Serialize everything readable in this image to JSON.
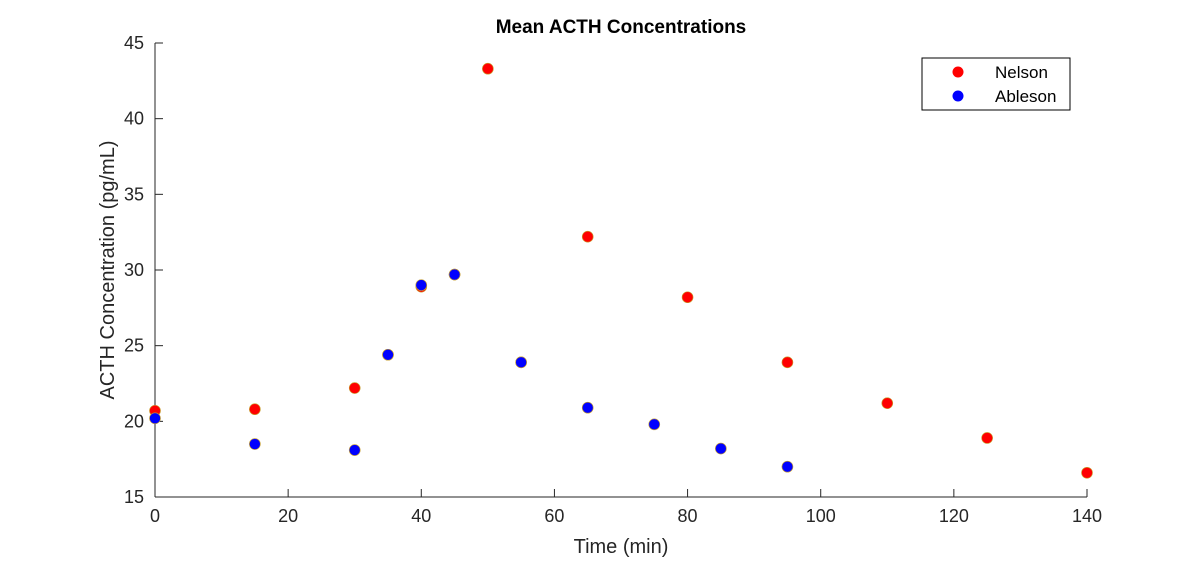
{
  "chart_data": {
    "type": "scatter",
    "title": "Mean ACTH Concentrations",
    "xlabel": "Time (min)",
    "ylabel": "ACTH Concentration (pg/mL)",
    "xlim": [
      0,
      140
    ],
    "ylim": [
      15,
      45
    ],
    "xticks": [
      "0",
      "20",
      "40",
      "60",
      "80",
      "100",
      "120",
      "140"
    ],
    "yticks": [
      "15",
      "20",
      "25",
      "30",
      "35",
      "40",
      "45"
    ],
    "grid": false,
    "legend_position": "top-right",
    "series": [
      {
        "name": "Nelson",
        "color": "#ff0000",
        "x": [
          0,
          15,
          30,
          35,
          40,
          45,
          50,
          55,
          65,
          80,
          95,
          110,
          125,
          140
        ],
        "y": [
          20.7,
          20.8,
          22.2,
          24.4,
          28.9,
          29.7,
          43.3,
          23.9,
          32.2,
          28.2,
          23.9,
          21.2,
          18.9,
          16.6
        ]
      },
      {
        "name": "Ableson",
        "color": "#0000ff",
        "x": [
          0,
          15,
          30,
          35,
          40,
          45,
          55,
          65,
          75,
          85,
          95
        ],
        "y": [
          20.2,
          18.5,
          18.1,
          24.4,
          29.0,
          29.7,
          23.9,
          20.9,
          19.8,
          18.2,
          17.0
        ]
      }
    ]
  }
}
